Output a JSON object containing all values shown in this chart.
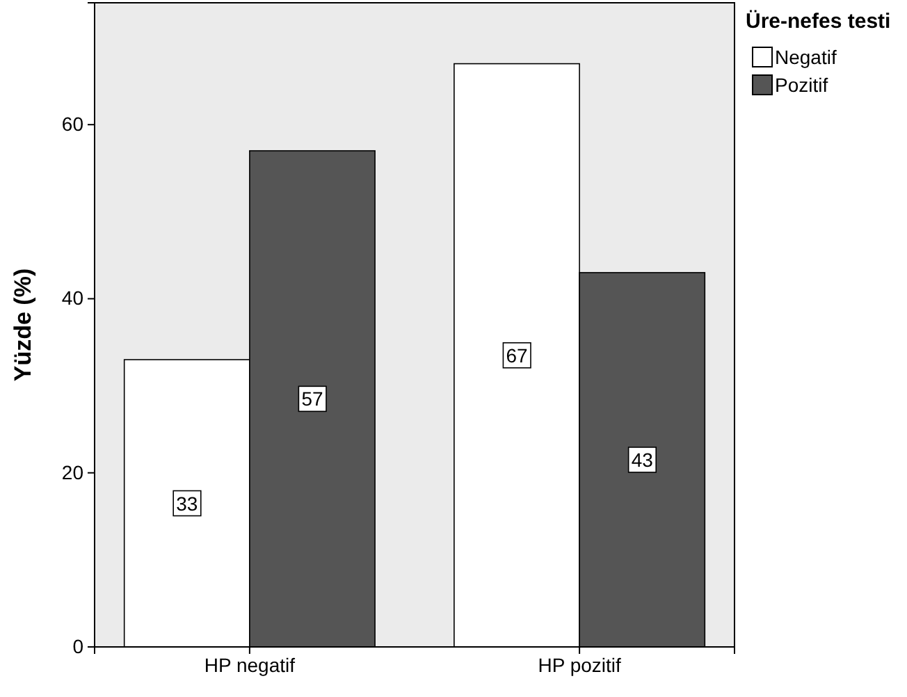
{
  "chart_data": {
    "type": "bar",
    "ylabel": "Yüzde (%)",
    "legend_title": "Üre-nefes testi",
    "categories": [
      "HP negatif",
      "HP pozitif"
    ],
    "series": [
      {
        "name": "Negatif",
        "color": "#ffffff",
        "values": [
          33,
          67
        ]
      },
      {
        "name": "Pozitif",
        "color": "#555555",
        "values": [
          57,
          43
        ]
      }
    ],
    "ylim": [
      0,
      74
    ],
    "yticks": [
      0,
      20,
      40,
      60
    ],
    "grid": false,
    "legend": "top right",
    "data_labels": true
  }
}
